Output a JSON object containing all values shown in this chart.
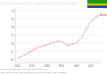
{
  "title": "Development of life expectancy (from Tanzania)",
  "title_bg": "#222222",
  "title_color": "#cccccc",
  "line_color": "#d48080",
  "line_color_end": "#cc2222",
  "years": [
    1960,
    1961,
    1962,
    1963,
    1964,
    1965,
    1966,
    1967,
    1968,
    1969,
    1970,
    1971,
    1972,
    1973,
    1974,
    1975,
    1976,
    1977,
    1978,
    1979,
    1980,
    1981,
    1982,
    1983,
    1984,
    1985,
    1986,
    1987,
    1988,
    1989,
    1990,
    1991,
    1992,
    1993,
    1994,
    1995,
    1996,
    1997,
    1998,
    1999,
    2000,
    2001,
    2002,
    2003,
    2004,
    2005,
    2006,
    2007,
    2008,
    2009,
    2010,
    2011,
    2012,
    2013,
    2014,
    2015
  ],
  "values": [
    41.0,
    41.5,
    42.0,
    42.5,
    43.0,
    43.5,
    44.0,
    44.5,
    45.0,
    45.5,
    46.0,
    46.5,
    47.0,
    47.5,
    47.8,
    48.2,
    48.5,
    48.8,
    49.0,
    49.2,
    49.5,
    49.8,
    50.2,
    50.5,
    50.8,
    51.0,
    51.3,
    51.5,
    51.5,
    51.3,
    51.0,
    50.5,
    50.0,
    49.5,
    49.0,
    49.0,
    49.5,
    49.8,
    50.0,
    50.3,
    50.8,
    51.5,
    52.5,
    53.5,
    55.0,
    56.5,
    58.0,
    59.5,
    61.0,
    62.5,
    63.8,
    64.8,
    65.5,
    66.2,
    66.8,
    67.2
  ],
  "ytick_labels": [
    "40",
    "45",
    "50",
    "55",
    "60",
    "65",
    "70"
  ],
  "ytick_values": [
    40,
    45,
    50,
    55,
    60,
    65,
    70
  ],
  "xtick_labels": [
    "1960",
    "1970",
    "1980",
    "1990",
    "2000",
    "2010"
  ],
  "xtick_values": [
    1960,
    1970,
    1980,
    1990,
    2000,
    2010
  ],
  "ylim": [
    38,
    72
  ],
  "xlim": [
    1958,
    2018
  ],
  "bg_color": "#ffffff",
  "plot_bg": "#ffffff",
  "grid_color": "#e0e0e0",
  "annotation": "Tanzania",
  "annotation_color": "#cc2222",
  "annotation_year": 2015,
  "annotation_val": 67.2,
  "flag_colors": [
    "#1e50a0",
    "#ffcc00",
    "#1a9900"
  ],
  "footer1": "Sources: own small graph sourced from data for years",
  "footer2": "own calculation from: own compilation from: Development of life expectancy."
}
